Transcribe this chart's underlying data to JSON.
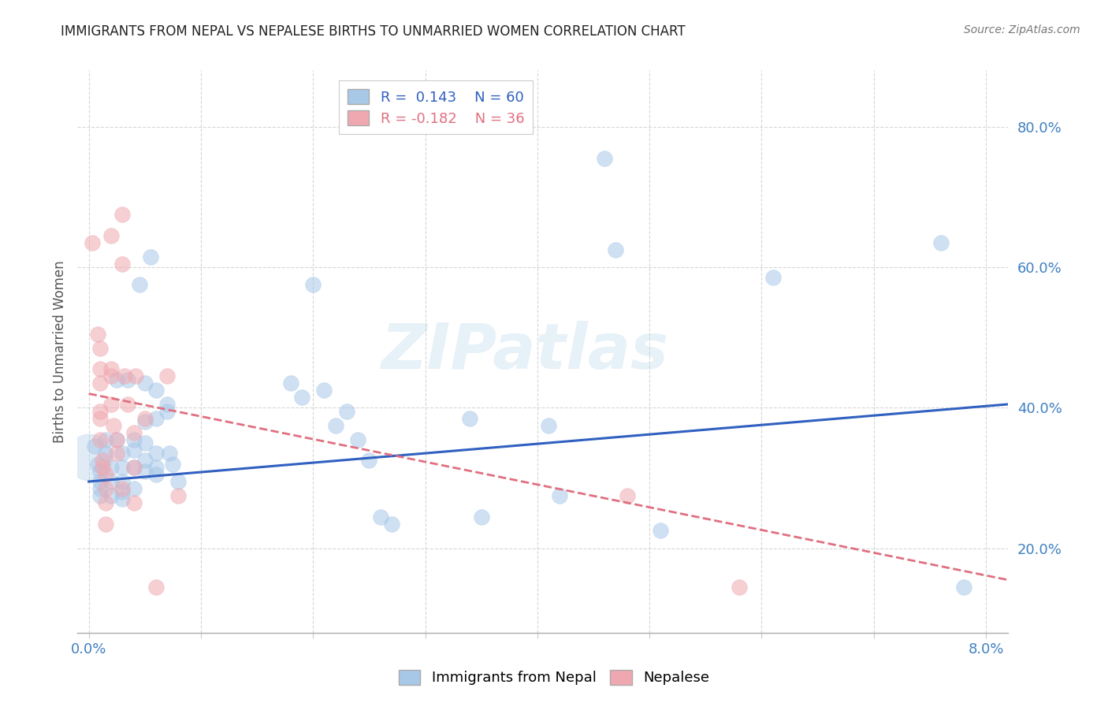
{
  "title": "IMMIGRANTS FROM NEPAL VS NEPALESE BIRTHS TO UNMARRIED WOMEN CORRELATION CHART",
  "source": "Source: ZipAtlas.com",
  "ylabel": "Births to Unmarried Women",
  "yticks": [
    0.2,
    0.4,
    0.6,
    0.8
  ],
  "ytick_labels": [
    "20.0%",
    "40.0%",
    "60.0%",
    "80.0%"
  ],
  "xticks": [
    0.0,
    0.01,
    0.02,
    0.03,
    0.04,
    0.05,
    0.06,
    0.07,
    0.08
  ],
  "xlim": [
    -0.001,
    0.082
  ],
  "ylim": [
    0.08,
    0.88
  ],
  "watermark": "ZIPatlas",
  "legend_blue_r": "0.143",
  "legend_blue_n": "60",
  "legend_pink_r": "-0.182",
  "legend_pink_n": "36",
  "blue_color": "#a8c8e8",
  "pink_color": "#f0a8b0",
  "blue_fill": "#a8c8e8",
  "pink_fill": "#f0a8b0",
  "blue_line_color": "#3060c0",
  "pink_line_color": "#e07080",
  "axis_label_color": "#4080c0",
  "blue_points": [
    [
      0.0005,
      0.345
    ],
    [
      0.0008,
      0.32
    ],
    [
      0.001,
      0.31
    ],
    [
      0.001,
      0.295
    ],
    [
      0.001,
      0.285
    ],
    [
      0.001,
      0.275
    ],
    [
      0.0015,
      0.355
    ],
    [
      0.0015,
      0.335
    ],
    [
      0.002,
      0.315
    ],
    [
      0.002,
      0.295
    ],
    [
      0.002,
      0.275
    ],
    [
      0.0025,
      0.44
    ],
    [
      0.0025,
      0.355
    ],
    [
      0.003,
      0.335
    ],
    [
      0.003,
      0.315
    ],
    [
      0.003,
      0.295
    ],
    [
      0.003,
      0.28
    ],
    [
      0.003,
      0.27
    ],
    [
      0.0035,
      0.44
    ],
    [
      0.004,
      0.355
    ],
    [
      0.004,
      0.34
    ],
    [
      0.004,
      0.315
    ],
    [
      0.004,
      0.285
    ],
    [
      0.0045,
      0.575
    ],
    [
      0.005,
      0.435
    ],
    [
      0.005,
      0.38
    ],
    [
      0.005,
      0.35
    ],
    [
      0.005,
      0.325
    ],
    [
      0.005,
      0.31
    ],
    [
      0.0055,
      0.615
    ],
    [
      0.006,
      0.425
    ],
    [
      0.006,
      0.385
    ],
    [
      0.006,
      0.335
    ],
    [
      0.006,
      0.315
    ],
    [
      0.006,
      0.305
    ],
    [
      0.007,
      0.405
    ],
    [
      0.007,
      0.395
    ],
    [
      0.0072,
      0.335
    ],
    [
      0.0075,
      0.32
    ],
    [
      0.008,
      0.295
    ],
    [
      0.018,
      0.435
    ],
    [
      0.019,
      0.415
    ],
    [
      0.02,
      0.575
    ],
    [
      0.021,
      0.425
    ],
    [
      0.022,
      0.375
    ],
    [
      0.023,
      0.395
    ],
    [
      0.024,
      0.355
    ],
    [
      0.025,
      0.325
    ],
    [
      0.026,
      0.245
    ],
    [
      0.027,
      0.235
    ],
    [
      0.034,
      0.385
    ],
    [
      0.035,
      0.245
    ],
    [
      0.041,
      0.375
    ],
    [
      0.042,
      0.275
    ],
    [
      0.046,
      0.755
    ],
    [
      0.047,
      0.625
    ],
    [
      0.051,
      0.225
    ],
    [
      0.061,
      0.585
    ],
    [
      0.076,
      0.635
    ],
    [
      0.078,
      0.145
    ]
  ],
  "pink_points": [
    [
      0.0003,
      0.635
    ],
    [
      0.0008,
      0.505
    ],
    [
      0.001,
      0.485
    ],
    [
      0.001,
      0.455
    ],
    [
      0.001,
      0.435
    ],
    [
      0.001,
      0.395
    ],
    [
      0.001,
      0.385
    ],
    [
      0.001,
      0.355
    ],
    [
      0.0012,
      0.325
    ],
    [
      0.0012,
      0.315
    ],
    [
      0.0015,
      0.305
    ],
    [
      0.0015,
      0.285
    ],
    [
      0.0015,
      0.265
    ],
    [
      0.0015,
      0.235
    ],
    [
      0.002,
      0.645
    ],
    [
      0.002,
      0.455
    ],
    [
      0.002,
      0.445
    ],
    [
      0.002,
      0.405
    ],
    [
      0.0022,
      0.375
    ],
    [
      0.0025,
      0.355
    ],
    [
      0.0025,
      0.335
    ],
    [
      0.003,
      0.285
    ],
    [
      0.003,
      0.675
    ],
    [
      0.003,
      0.605
    ],
    [
      0.0032,
      0.445
    ],
    [
      0.0035,
      0.405
    ],
    [
      0.004,
      0.365
    ],
    [
      0.004,
      0.315
    ],
    [
      0.004,
      0.265
    ],
    [
      0.0042,
      0.445
    ],
    [
      0.005,
      0.385
    ],
    [
      0.006,
      0.145
    ],
    [
      0.007,
      0.445
    ],
    [
      0.008,
      0.275
    ],
    [
      0.048,
      0.275
    ],
    [
      0.058,
      0.145
    ]
  ],
  "blue_trendline_x": [
    0.0,
    0.082
  ],
  "blue_trendline_y": [
    0.295,
    0.405
  ],
  "pink_trendline_x": [
    0.0,
    0.082
  ],
  "pink_trendline_y": [
    0.42,
    0.155
  ]
}
